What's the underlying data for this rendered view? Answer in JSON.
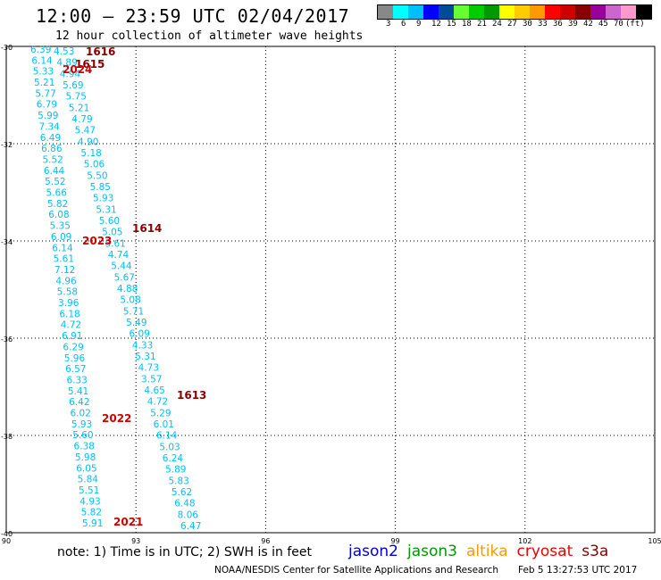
{
  "header": {
    "title": "12:00 — 23:59 UTC 02/04/2017",
    "subtitle": "12 hour collection of altimeter wave heights"
  },
  "legend": {
    "unit": "(ft)",
    "colors": [
      "#888888",
      "#00ffff",
      "#00bfff",
      "#0000ff",
      "#004b9a",
      "#66ff33",
      "#00cc00",
      "#009900",
      "#ffff00",
      "#ffcc00",
      "#ff9900",
      "#ff0000",
      "#cc0000",
      "#880000",
      "#990099",
      "#cc66cc",
      "#ff99cc",
      "#000000"
    ],
    "labels": [
      "3",
      "6",
      "9",
      "12",
      "15",
      "18",
      "21",
      "24",
      "27",
      "30",
      "33",
      "36",
      "39",
      "42",
      "45",
      "70"
    ]
  },
  "axes": {
    "lat_labels": [
      "-30",
      "-32",
      "-34",
      "-36",
      "-38",
      "-40"
    ],
    "lon_labels": [
      "90",
      "93",
      "96",
      "99",
      "102",
      "105"
    ]
  },
  "pass_labels": [
    {
      "text": "1616",
      "color": "#880000"
    },
    {
      "text": "1615",
      "color": "#880000"
    },
    {
      "text": "2024",
      "color": "#cc0000"
    },
    {
      "text": "1614",
      "color": "#880000"
    },
    {
      "text": "2023",
      "color": "#cc0000"
    },
    {
      "text": "1613",
      "color": "#880000"
    },
    {
      "text": "2022",
      "color": "#cc0000"
    },
    {
      "text": "2021",
      "color": "#cc0000"
    }
  ],
  "tracks": {
    "left_a": {
      "color": "#00bfff",
      "values": [
        "6.39",
        "6.14",
        "5.33",
        "5.21",
        "5.77",
        "6.79",
        "5.99",
        "7.34",
        "6.49",
        "6.86",
        "5.52",
        "6.44",
        "5.52",
        "5.66",
        "5.82",
        "6.08",
        "5.35",
        "6.09",
        "6.14",
        "5.61",
        "7.12",
        "4.96",
        "5.58",
        "3.96",
        "6.18",
        "4.72",
        "6.91",
        "6.29",
        "5.96",
        "6.57",
        "6.33",
        "5.41",
        "6.42",
        "6.02",
        "5.93",
        "5.60",
        "6.38",
        "5.98",
        "6.05",
        "5.84",
        "5.51",
        "4.93",
        "5.82",
        "5.91"
      ]
    },
    "right_a": {
      "color": "#00bfff",
      "values": [
        "4.53",
        "4.89",
        "4.94",
        "5.69",
        "5.75",
        "5.21",
        "4.79",
        "5.47",
        "4.90",
        "5.18",
        "5.06",
        "5.50",
        "5.85",
        "5.93",
        "5.31",
        "5.60",
        "5.05",
        "5.61",
        "4.74",
        "5.44",
        "5.67",
        "4.88",
        "5.08",
        "5.71",
        "5.49",
        "6.09",
        "4.33",
        "5.31",
        "4.73",
        "3.57",
        "4.65",
        "4.72",
        "5.29",
        "6.01",
        "6.14",
        "5.03",
        "6.24",
        "5.89",
        "5.83",
        "5.62",
        "6.48",
        "8.06",
        "6.47"
      ]
    }
  },
  "footer": {
    "note": "note: 1) Time is in UTC; 2) SWH is in feet",
    "satellites": [
      {
        "name": "jason2",
        "color": "#0000cc"
      },
      {
        "name": "jason3",
        "color": "#009900"
      },
      {
        "name": "altika",
        "color": "#ff9900"
      },
      {
        "name": "cryosat",
        "color": "#ee0000"
      },
      {
        "name": "s3a",
        "color": "#880000"
      }
    ],
    "credit": "NOAA/NESDIS Center for Satellite Applications and Research",
    "timestamp": "Feb 5 13:27:53 UTC 2017"
  }
}
